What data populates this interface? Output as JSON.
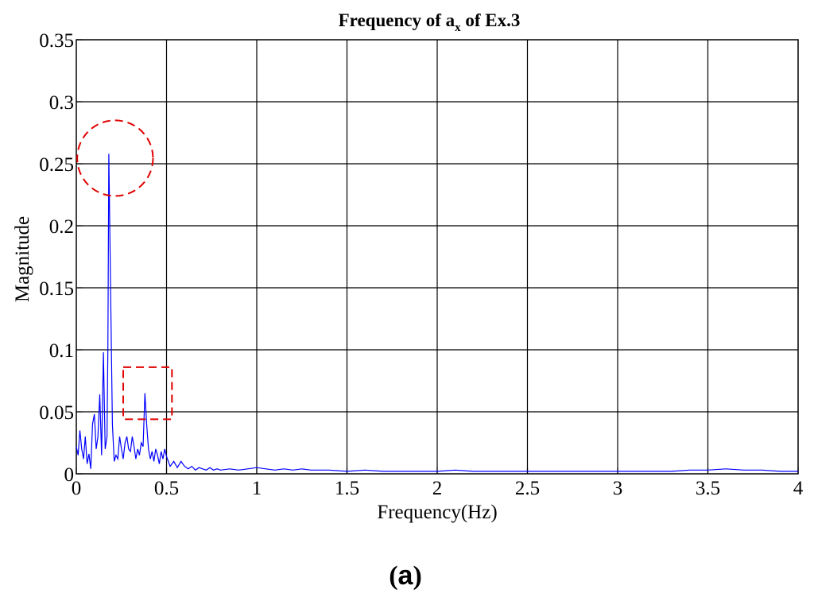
{
  "chart_data": {
    "type": "line",
    "title_main": "Frequency of a",
    "title_sub": "x",
    "title_tail": " of Ex.3",
    "xlabel": "Frequency(Hz)",
    "ylabel": "Magnitude",
    "caption": {
      "open": "(",
      "letter": "a",
      "close": ")"
    },
    "xlim": [
      0,
      4
    ],
    "ylim": [
      0,
      0.35
    ],
    "xticks": [
      0,
      0.5,
      1,
      1.5,
      2,
      2.5,
      3,
      3.5,
      4
    ],
    "xtick_labels": [
      "0",
      "0.5",
      "1",
      "1.5",
      "2",
      "2.5",
      "3",
      "3.5",
      "4"
    ],
    "yticks": [
      0,
      0.05,
      0.1,
      0.15,
      0.2,
      0.25,
      0.3,
      0.35
    ],
    "ytick_labels": [
      "0",
      "0.05",
      "0.1",
      "0.15",
      "0.2",
      "0.25",
      "0.3",
      "0.35"
    ],
    "grid": true,
    "line_color": "#0000ff",
    "annotation_color": "#e00000",
    "series": [
      {
        "x": [
          0.0,
          0.01,
          0.02,
          0.03,
          0.04,
          0.05,
          0.06,
          0.07,
          0.08,
          0.09,
          0.1,
          0.11,
          0.12,
          0.13,
          0.14,
          0.15,
          0.16,
          0.17,
          0.175,
          0.18,
          0.19,
          0.2,
          0.21,
          0.22,
          0.23,
          0.24,
          0.25,
          0.26,
          0.27,
          0.28,
          0.29,
          0.3,
          0.31,
          0.32,
          0.33,
          0.34,
          0.35,
          0.36,
          0.37,
          0.38,
          0.39,
          0.4,
          0.41,
          0.42,
          0.43,
          0.44,
          0.45,
          0.46,
          0.47,
          0.48,
          0.49,
          0.5,
          0.52,
          0.54,
          0.56,
          0.58,
          0.6,
          0.62,
          0.64,
          0.66,
          0.68,
          0.7,
          0.72,
          0.74,
          0.76,
          0.78,
          0.8,
          0.85,
          0.9,
          0.95,
          1.0,
          1.05,
          1.1,
          1.15,
          1.2,
          1.25,
          1.3,
          1.4,
          1.5,
          1.6,
          1.7,
          1.8,
          1.9,
          2.0,
          2.1,
          2.2,
          2.3,
          2.4,
          2.5,
          2.6,
          2.7,
          2.8,
          2.9,
          3.0,
          3.1,
          3.2,
          3.3,
          3.4,
          3.5,
          3.6,
          3.7,
          3.8,
          3.9,
          4.0
        ],
        "y": [
          0.022,
          0.015,
          0.035,
          0.02,
          0.012,
          0.03,
          0.008,
          0.016,
          0.004,
          0.04,
          0.048,
          0.02,
          0.03,
          0.064,
          0.015,
          0.098,
          0.02,
          0.03,
          0.1,
          0.258,
          0.15,
          0.04,
          0.01,
          0.015,
          0.012,
          0.03,
          0.02,
          0.012,
          0.025,
          0.03,
          0.02,
          0.018,
          0.03,
          0.022,
          0.012,
          0.02,
          0.015,
          0.025,
          0.022,
          0.065,
          0.04,
          0.02,
          0.012,
          0.018,
          0.01,
          0.02,
          0.015,
          0.008,
          0.018,
          0.012,
          0.02,
          0.014,
          0.006,
          0.01,
          0.005,
          0.01,
          0.006,
          0.004,
          0.006,
          0.003,
          0.005,
          0.004,
          0.003,
          0.005,
          0.003,
          0.004,
          0.003,
          0.004,
          0.003,
          0.004,
          0.005,
          0.004,
          0.003,
          0.004,
          0.003,
          0.004,
          0.003,
          0.003,
          0.002,
          0.003,
          0.002,
          0.002,
          0.002,
          0.002,
          0.003,
          0.002,
          0.002,
          0.002,
          0.002,
          0.002,
          0.002,
          0.002,
          0.002,
          0.002,
          0.002,
          0.002,
          0.002,
          0.003,
          0.003,
          0.004,
          0.003,
          0.003,
          0.002,
          0.002
        ]
      }
    ]
  }
}
